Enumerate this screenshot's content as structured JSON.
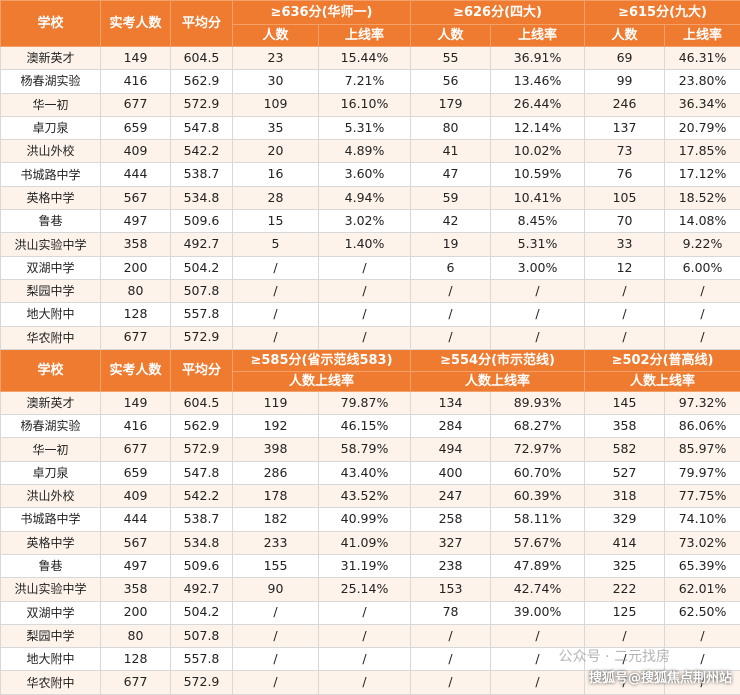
{
  "tables": [
    {
      "header": {
        "school": "学校",
        "count": "实考人数",
        "avg": "平均分",
        "groups": [
          {
            "title": "≥636分(华师一)",
            "sub_count": "人数",
            "sub_rate": "上线率"
          },
          {
            "title": "≥626分(四大)",
            "sub_count": "人数",
            "sub_rate": "上线率"
          },
          {
            "title": "≥615分(九大)",
            "sub_count": "人数",
            "sub_rate": "上线率"
          }
        ]
      },
      "rows": [
        [
          "澳新英才",
          "149",
          "604.5",
          "23",
          "15.44%",
          "55",
          "36.91%",
          "69",
          "46.31%"
        ],
        [
          "杨春湖实验",
          "416",
          "562.9",
          "30",
          "7.21%",
          "56",
          "13.46%",
          "99",
          "23.80%"
        ],
        [
          "华一初",
          "677",
          "572.9",
          "109",
          "16.10%",
          "179",
          "26.44%",
          "246",
          "36.34%"
        ],
        [
          "卓刀泉",
          "659",
          "547.8",
          "35",
          "5.31%",
          "80",
          "12.14%",
          "137",
          "20.79%"
        ],
        [
          "洪山外校",
          "409",
          "542.2",
          "20",
          "4.89%",
          "41",
          "10.02%",
          "73",
          "17.85%"
        ],
        [
          "书城路中学",
          "444",
          "538.7",
          "16",
          "3.60%",
          "47",
          "10.59%",
          "76",
          "17.12%"
        ],
        [
          "英格中学",
          "567",
          "534.8",
          "28",
          "4.94%",
          "59",
          "10.41%",
          "105",
          "18.52%"
        ],
        [
          "鲁巷",
          "497",
          "509.6",
          "15",
          "3.02%",
          "42",
          "8.45%",
          "70",
          "14.08%"
        ],
        [
          "洪山实验中学",
          "358",
          "492.7",
          "5",
          "1.40%",
          "19",
          "5.31%",
          "33",
          "9.22%"
        ],
        [
          "双湖中学",
          "200",
          "504.2",
          "/",
          "/",
          "6",
          "3.00%",
          "12",
          "6.00%"
        ],
        [
          "梨园中学",
          "80",
          "507.8",
          "/",
          "/",
          "/",
          "/",
          "/",
          "/"
        ],
        [
          "地大附中",
          "128",
          "557.8",
          "/",
          "/",
          "/",
          "/",
          "/",
          "/"
        ],
        [
          "华农附中",
          "677",
          "572.9",
          "/",
          "/",
          "/",
          "/",
          "/",
          "/"
        ]
      ]
    },
    {
      "header": {
        "school": "学校",
        "count": "实考人数",
        "avg": "平均分",
        "groups": [
          {
            "title": "≥585分(省示范线583)",
            "sub": "人数上线率"
          },
          {
            "title": "≥554分(市示范线)",
            "sub": "人数上线率"
          },
          {
            "title": "≥502分(普高线)",
            "sub": "人数上线率"
          }
        ]
      },
      "rows": [
        [
          "澳新英才",
          "149",
          "604.5",
          "119",
          "79.87%",
          "134",
          "89.93%",
          "145",
          "97.32%"
        ],
        [
          "杨春湖实验",
          "416",
          "562.9",
          "192",
          "46.15%",
          "284",
          "68.27%",
          "358",
          "86.06%"
        ],
        [
          "华一初",
          "677",
          "572.9",
          "398",
          "58.79%",
          "494",
          "72.97%",
          "582",
          "85.97%"
        ],
        [
          "卓刀泉",
          "659",
          "547.8",
          "286",
          "43.40%",
          "400",
          "60.70%",
          "527",
          "79.97%"
        ],
        [
          "洪山外校",
          "409",
          "542.2",
          "178",
          "43.52%",
          "247",
          "60.39%",
          "318",
          "77.75%"
        ],
        [
          "书城路中学",
          "444",
          "538.7",
          "182",
          "40.99%",
          "258",
          "58.11%",
          "329",
          "74.10%"
        ],
        [
          "英格中学",
          "567",
          "534.8",
          "233",
          "41.09%",
          "327",
          "57.67%",
          "414",
          "73.02%"
        ],
        [
          "鲁巷",
          "497",
          "509.6",
          "155",
          "31.19%",
          "238",
          "47.89%",
          "325",
          "65.39%"
        ],
        [
          "洪山实验中学",
          "358",
          "492.7",
          "90",
          "25.14%",
          "153",
          "42.74%",
          "222",
          "62.01%"
        ],
        [
          "双湖中学",
          "200",
          "504.2",
          "/",
          "/",
          "78",
          "39.00%",
          "125",
          "62.50%"
        ],
        [
          "梨园中学",
          "80",
          "507.8",
          "/",
          "/",
          "/",
          "/",
          "/",
          "/"
        ],
        [
          "地大附中",
          "128",
          "557.8",
          "/",
          "/",
          "/",
          "/",
          "/",
          "/"
        ],
        [
          "华农附中",
          "677",
          "572.9",
          "/",
          "/",
          "/",
          "/",
          "/",
          "/"
        ]
      ]
    }
  ],
  "watermark": {
    "wechat": "公众号 · 二元找房",
    "sohu": "搜狐号@搜狐焦点荆州站"
  }
}
